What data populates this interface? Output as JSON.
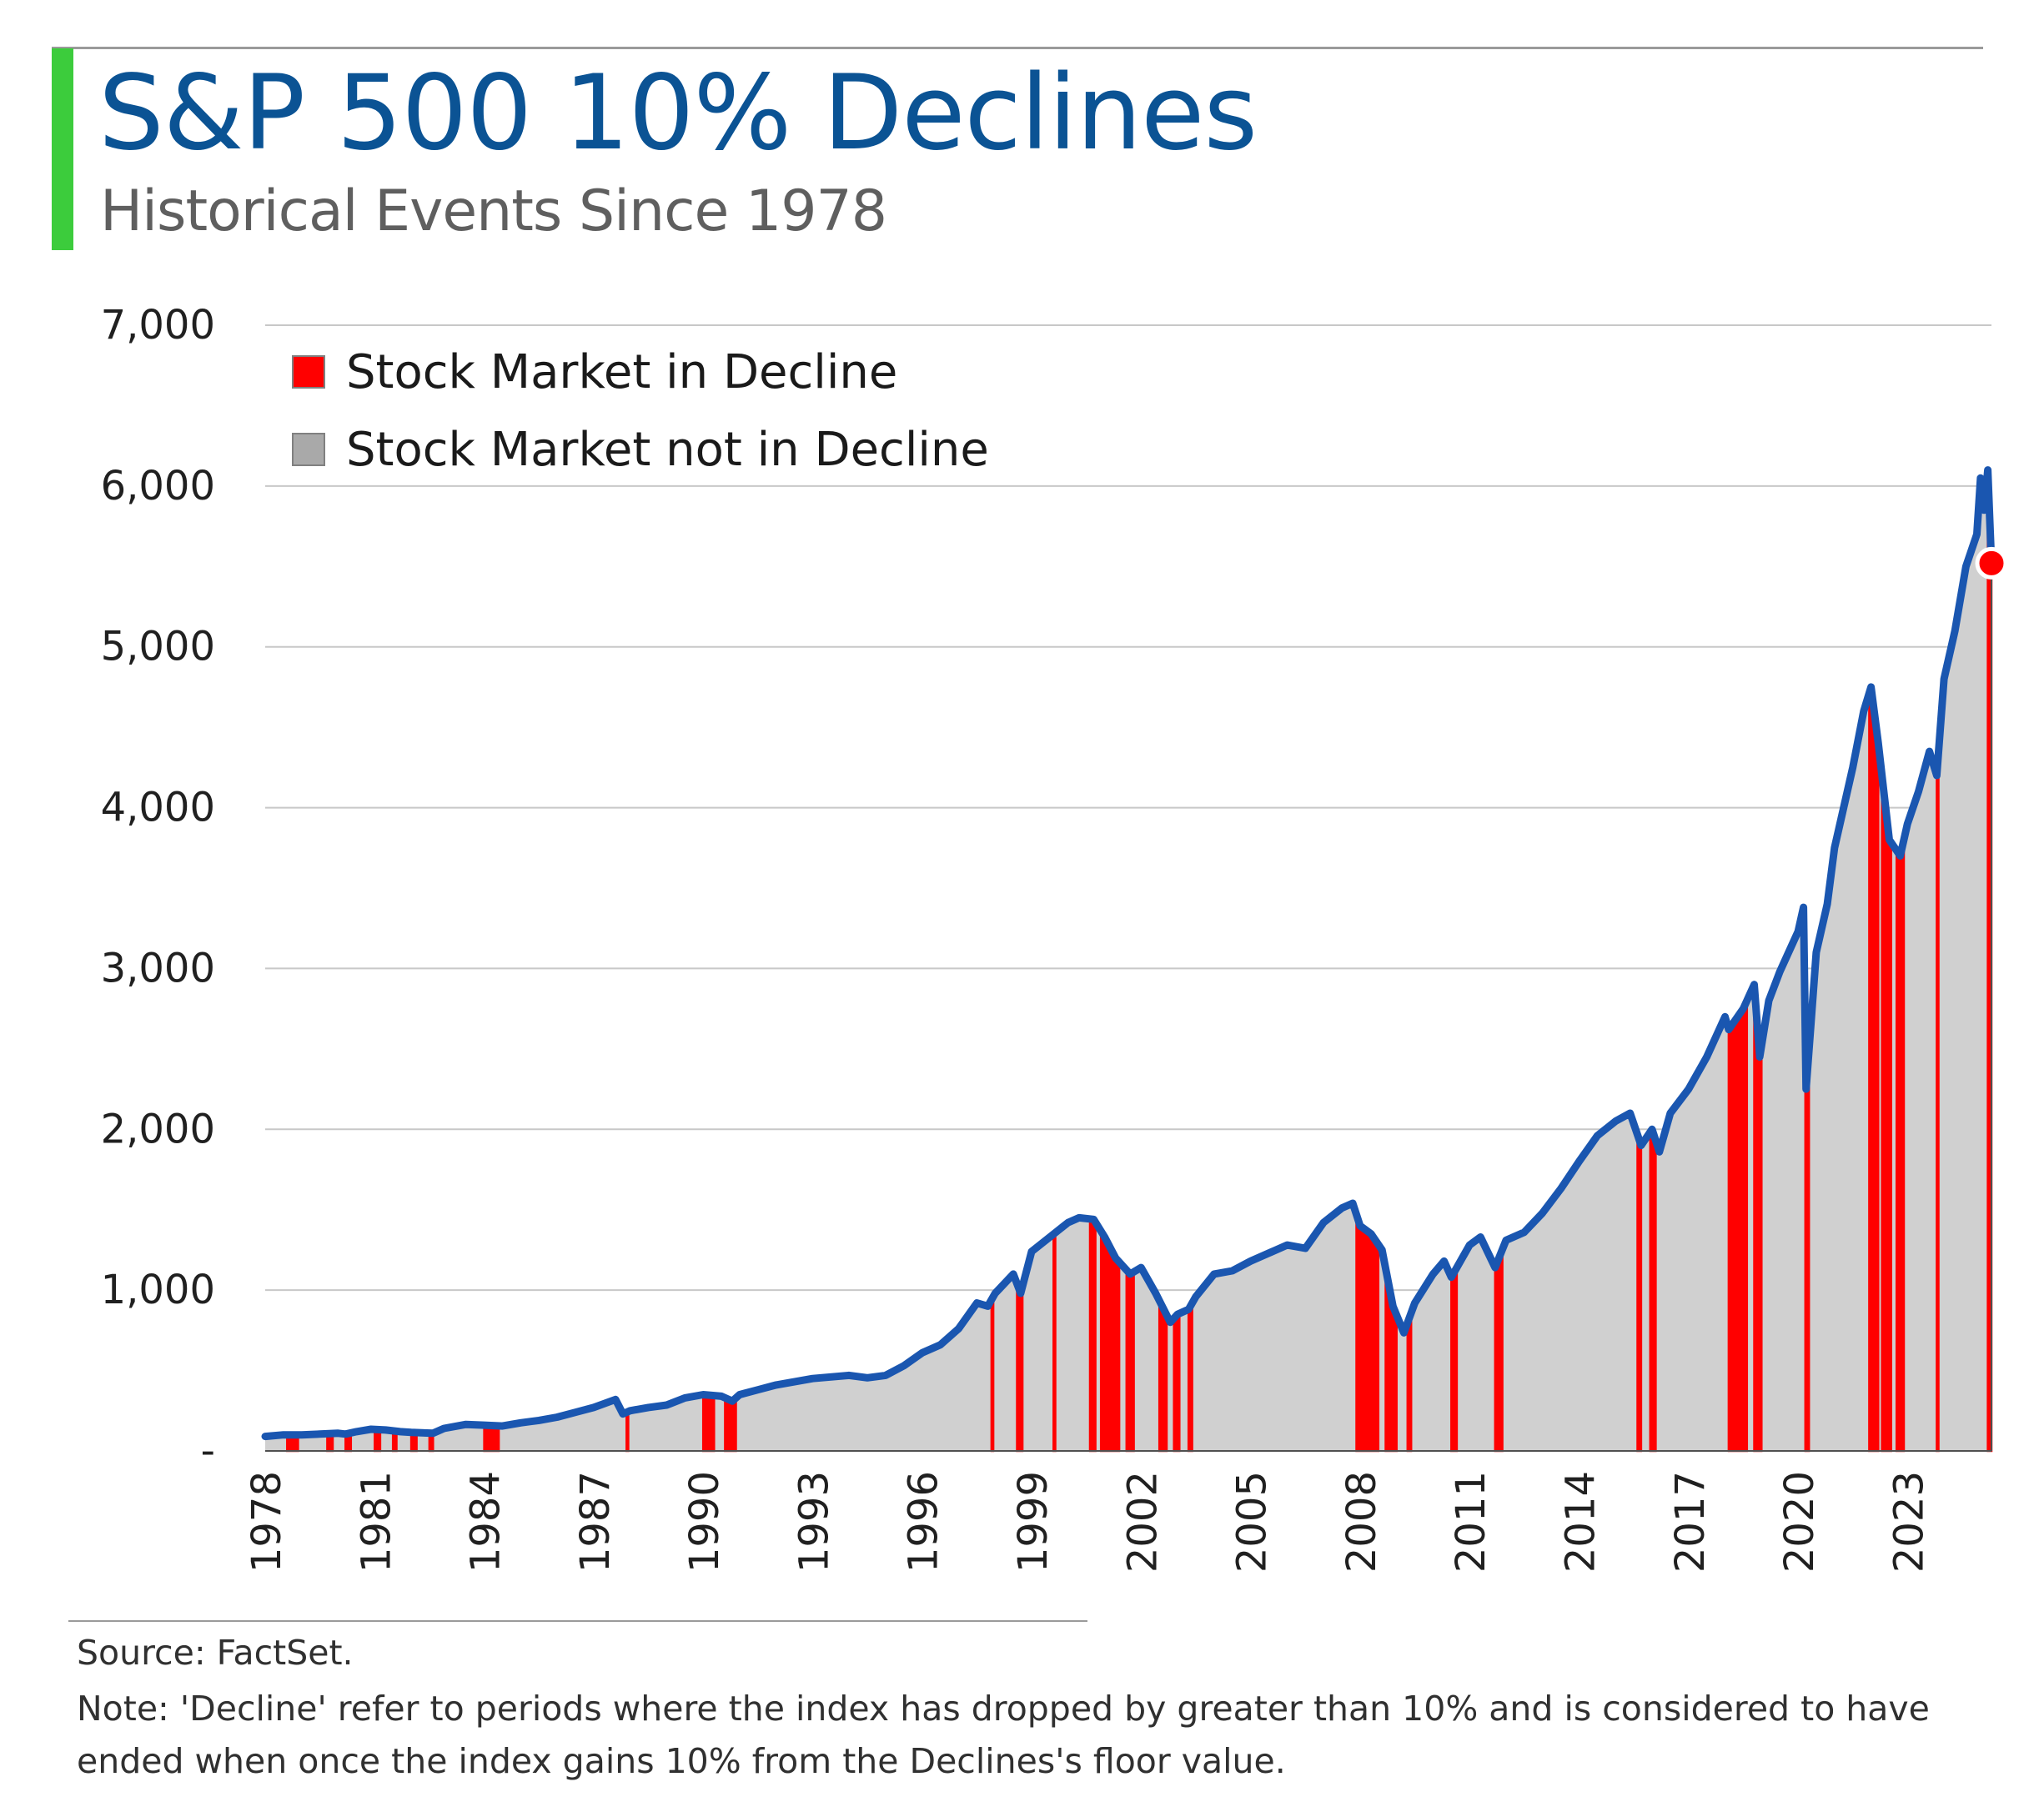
{
  "header": {
    "title": "S&P 500 10% Declines",
    "subtitle": "Historical Events Since 1978"
  },
  "colors": {
    "title": "#0b5394",
    "accent_bar": "#3ccc3c",
    "line": "#1a56b0",
    "area": "#d0d0d0",
    "decline": "#ff0000",
    "grid": "#c8c8c8",
    "text": "#202020"
  },
  "chart_data": {
    "type": "area",
    "title": "S&P 500 10% Declines",
    "subtitle": "Historical Events Since 1978",
    "ylim": [
      0,
      7000
    ],
    "yticks": [
      0,
      1000,
      2000,
      3000,
      4000,
      5000,
      6000,
      7000
    ],
    "ytick_labels": [
      "-",
      "1,000",
      "2,000",
      "3,000",
      "4,000",
      "5,000",
      "6,000",
      "7,000"
    ],
    "xlim": [
      1978,
      2025.3
    ],
    "xticks": [
      1978,
      1981,
      1984,
      1987,
      1990,
      1993,
      1996,
      1999,
      2002,
      2005,
      2008,
      2011,
      2014,
      2017,
      2020,
      2023
    ],
    "xtick_labels": [
      "1978",
      "1981",
      "1984",
      "1987",
      "1990",
      "1993",
      "1996",
      "1999",
      "2002",
      "2005",
      "2008",
      "2011",
      "2014",
      "2017",
      "2020",
      "2023"
    ],
    "grid": "horizontal",
    "legend_position": "top-left",
    "legend": [
      {
        "label": "Stock Market in Decline",
        "color": "#ff0000"
      },
      {
        "label": "Stock Market not in Decline",
        "color": "#a9a9a9"
      }
    ],
    "series": [
      {
        "x": [
          1978.0,
          1978.5,
          1979.0,
          1979.5,
          1980.0,
          1980.2,
          1980.5,
          1980.9,
          1981.3,
          1981.7,
          1982.0,
          1982.6,
          1982.9,
          1983.5,
          1984.0,
          1984.5,
          1985.0,
          1985.5,
          1986.0,
          1986.5,
          1987.0,
          1987.6,
          1987.8,
          1988.0,
          1988.5,
          1989.0,
          1989.5,
          1990.0,
          1990.5,
          1990.8,
          1991.0,
          1991.5,
          1992.0,
          1993.0,
          1994.0,
          1994.5,
          1995.0,
          1995.5,
          1996.0,
          1996.5,
          1997.0,
          1997.5,
          1997.8,
          1998.0,
          1998.5,
          1998.7,
          1999.0,
          1999.5,
          2000.0,
          2000.3,
          2000.7,
          2001.0,
          2001.3,
          2001.7,
          2002.0,
          2002.4,
          2002.8,
          2003.0,
          2003.3,
          2003.5,
          2004.0,
          2004.5,
          2005.0,
          2006.0,
          2006.5,
          2007.0,
          2007.5,
          2007.8,
          2008.0,
          2008.3,
          2008.6,
          2008.9,
          2009.2,
          2009.5,
          2010.0,
          2010.3,
          2010.5,
          2011.0,
          2011.3,
          2011.7,
          2012.0,
          2012.5,
          2013.0,
          2013.5,
          2014.0,
          2014.5,
          2015.0,
          2015.4,
          2015.7,
          2016.0,
          2016.2,
          2016.5,
          2017.0,
          2017.5,
          2018.0,
          2018.1,
          2018.5,
          2018.8,
          2018.95,
          2019.2,
          2019.5,
          2020.0,
          2020.15,
          2020.22,
          2020.5,
          2020.8,
          2021.0,
          2021.5,
          2021.8,
          2022.0,
          2022.2,
          2022.5,
          2022.8,
          2023.0,
          2023.3,
          2023.6,
          2023.8,
          2024.0,
          2024.3,
          2024.6,
          2024.9,
          2025.0,
          2025.1,
          2025.2,
          2025.3
        ],
        "y": [
          90,
          100,
          100,
          105,
          110,
          105,
          120,
          135,
          130,
          120,
          115,
          110,
          140,
          165,
          160,
          155,
          175,
          190,
          210,
          240,
          270,
          320,
          230,
          250,
          270,
          285,
          330,
          350,
          340,
          310,
          350,
          380,
          410,
          450,
          470,
          455,
          470,
          530,
          610,
          660,
          760,
          920,
          900,
          980,
          1100,
          980,
          1240,
          1330,
          1420,
          1450,
          1440,
          1330,
          1200,
          1100,
          1140,
          980,
          800,
          850,
          880,
          960,
          1100,
          1120,
          1180,
          1280,
          1260,
          1420,
          1510,
          1540,
          1400,
          1350,
          1250,
          900,
          735,
          920,
          1100,
          1180,
          1080,
          1280,
          1330,
          1140,
          1310,
          1360,
          1480,
          1630,
          1800,
          1960,
          2050,
          2100,
          1900,
          2000,
          1860,
          2100,
          2250,
          2450,
          2700,
          2620,
          2750,
          2900,
          2450,
          2800,
          2980,
          3230,
          3380,
          2250,
          3100,
          3400,
          3750,
          4250,
          4600,
          4750,
          4400,
          3800,
          3700,
          3900,
          4100,
          4350,
          4200,
          4800,
          5100,
          5500,
          5700,
          6050,
          5850,
          6100,
          5520
        ]
      }
    ],
    "marker": {
      "x": 2025.3,
      "y": 5520
    },
    "decline_periods": [
      [
        1978.6,
        1978.9
      ],
      [
        1979.7,
        1979.85
      ],
      [
        1980.2,
        1980.35
      ],
      [
        1981.0,
        1981.15
      ],
      [
        1981.5,
        1981.6
      ],
      [
        1982.0,
        1982.15
      ],
      [
        1982.5,
        1982.6
      ],
      [
        1984.0,
        1984.4
      ],
      [
        1987.9,
        1987.95
      ],
      [
        1990.0,
        1990.3
      ],
      [
        1990.6,
        1990.9
      ],
      [
        1997.9,
        1997.95
      ],
      [
        1998.6,
        1998.75
      ],
      [
        1999.6,
        1999.65
      ],
      [
        2000.6,
        2000.75
      ],
      [
        2000.9,
        2001.4
      ],
      [
        2001.6,
        2001.8
      ],
      [
        2002.5,
        2002.7
      ],
      [
        2002.9,
        2003.05
      ],
      [
        2003.3,
        2003.4
      ],
      [
        2007.9,
        2008.5
      ],
      [
        2008.7,
        2009.0
      ],
      [
        2009.3,
        2009.4
      ],
      [
        2010.5,
        2010.65
      ],
      [
        2011.7,
        2011.9
      ],
      [
        2015.6,
        2015.7
      ],
      [
        2015.95,
        2016.1
      ],
      [
        2018.1,
        2018.6
      ],
      [
        2018.8,
        2019.0
      ],
      [
        2020.2,
        2020.3
      ],
      [
        2021.95,
        2022.2
      ],
      [
        2022.3,
        2022.55
      ],
      [
        2022.7,
        2022.9
      ],
      [
        2023.8,
        2023.85
      ],
      [
        2025.2,
        2025.3
      ]
    ]
  },
  "footer": {
    "source": "Source: FactSet.",
    "note_line1": "Note: 'Decline' refer to periods where the index has dropped by greater than 10% and is considered to have",
    "note_line2": "ended when once the index gains 10% from the Declines's floor value."
  }
}
